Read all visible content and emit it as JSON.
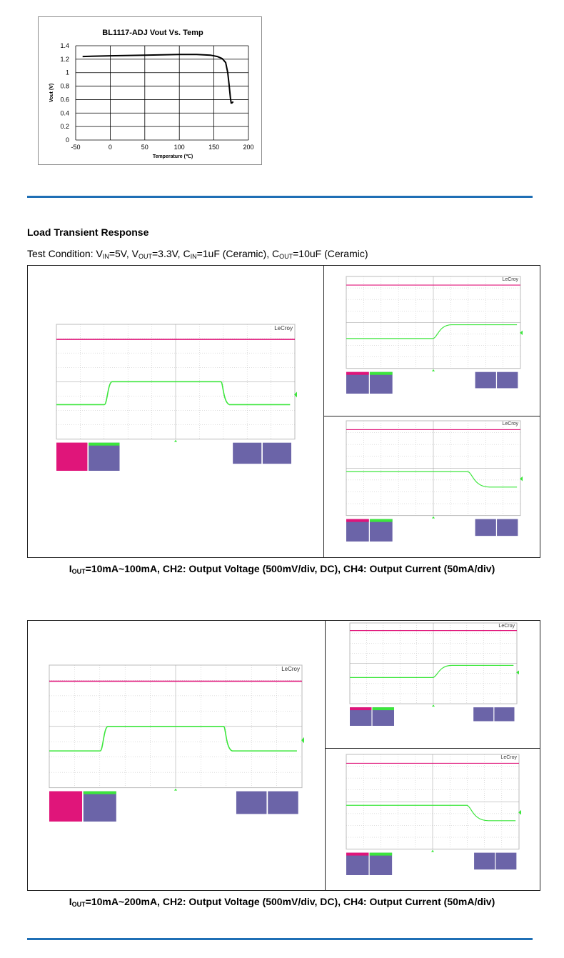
{
  "chart_data": {
    "type": "line",
    "title": "BL1117-ADJ Vout Vs. Temp",
    "xlabel": "Temperature (℃)",
    "ylabel": "Vout (V)",
    "xlim": [
      -50,
      200
    ],
    "ylim": [
      0,
      1.4
    ],
    "xticks": [
      "-50",
      "0",
      "50",
      "100",
      "150",
      "200"
    ],
    "yticks": [
      "0",
      "0.2",
      "0.4",
      "0.6",
      "0.8",
      "1",
      "1.2",
      "1.4"
    ],
    "grid": true,
    "x": [
      -40,
      0,
      50,
      100,
      125,
      145,
      155,
      162,
      167,
      170,
      172,
      174,
      175,
      176,
      178
    ],
    "y": [
      1.24,
      1.25,
      1.26,
      1.27,
      1.27,
      1.26,
      1.24,
      1.21,
      1.15,
      1.0,
      0.82,
      0.62,
      0.55,
      0.55,
      0.57
    ]
  },
  "section": {
    "title": "Load Transient Response",
    "condition": {
      "prefix": "Test Condition: V",
      "vin_sub": "IN",
      "vin_val": "=5V, V",
      "vout_sub": "OUT",
      "vout_val": "=3.3V, C",
      "cin_sub": "IN",
      "cin_val": "=1uF (Ceramic), C",
      "cout_sub": "OUT",
      "cout_val": "=10uF (Ceramic)"
    }
  },
  "brand": "LeCroy",
  "captions": {
    "first": {
      "i": "I",
      "sub": "OUT",
      "rest": "=10mA~100mA, CH2: Output Voltage (500mV/div, DC), CH4: Output Current (50mA/div)"
    },
    "second": {
      "i": "I",
      "sub": "OUT",
      "rest": "=10mA~200mA, CH2: Output Voltage (500mV/div, DC), CH4: Output Current (50mA/div)"
    }
  },
  "colors": {
    "rule": "#1f6fb5",
    "ch2": "#e0157a",
    "ch4": "#3ce63c",
    "grid": "#bfbfbf",
    "ch2_label": "#e0157a",
    "info": "#6b64a8"
  }
}
